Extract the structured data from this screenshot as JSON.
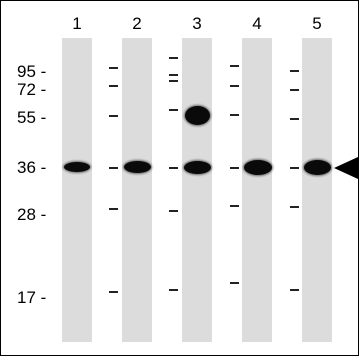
{
  "lanes": [
    {
      "label": "1",
      "bands_kda": [
        36
      ]
    },
    {
      "label": "2",
      "bands_kda": [
        36
      ]
    },
    {
      "label": "3",
      "bands_kda": [
        36,
        55
      ]
    },
    {
      "label": "4",
      "bands_kda": [
        36
      ]
    },
    {
      "label": "5",
      "bands_kda": [
        36
      ]
    }
  ],
  "markers": [
    {
      "label": "95 -"
    },
    {
      "label": "72 -"
    },
    {
      "label": "55 -"
    },
    {
      "label": "36 -"
    },
    {
      "label": "28 -"
    },
    {
      "label": "17 -"
    }
  ],
  "arrow_icon": "arrowhead-left-icon",
  "colors": {
    "band": "#0a0a0a",
    "lane": "#dcdcdc",
    "frame": "#000000"
  }
}
